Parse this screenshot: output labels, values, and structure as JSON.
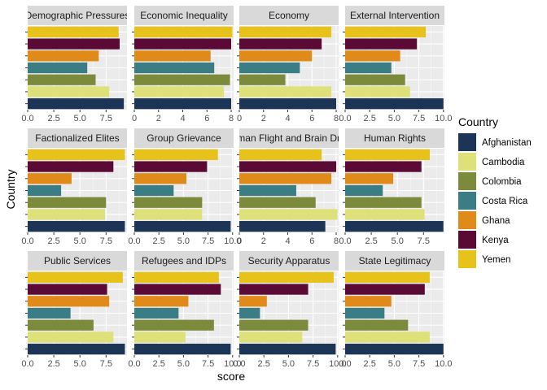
{
  "chart_data": {
    "type": "bar",
    "orientation": "horizontal",
    "faceted": true,
    "xlabel": "score",
    "ylabel": "Country",
    "legend": {
      "title": "Country",
      "placement": "right",
      "entries": [
        {
          "name": "Afghanistan",
          "color": "#1c3456"
        },
        {
          "name": "Cambodia",
          "color": "#dee07a"
        },
        {
          "name": "Colombia",
          "color": "#7b8a3b"
        },
        {
          "name": "Costa Rica",
          "color": "#3b7d85"
        },
        {
          "name": "Ghana",
          "color": "#e08a1a"
        },
        {
          "name": "Kenya",
          "color": "#5b0a36"
        },
        {
          "name": "Yemen",
          "color": "#e6c21a"
        }
      ]
    },
    "category_order_bottom_to_top": [
      "Afghanistan",
      "Cambodia",
      "Colombia",
      "Costa Rica",
      "Ghana",
      "Kenya",
      "Yemen"
    ],
    "panels": [
      {
        "title": "Demographic Pressures",
        "xlim": [
          0,
          9.5
        ],
        "ticks": [
          0,
          2.5,
          5,
          7.5
        ],
        "tick_labels": [
          "0.0",
          "2.5",
          "5.0",
          "7.5"
        ],
        "values": [
          9.2,
          7.8,
          6.5,
          5.7,
          6.8,
          8.8,
          8.7
        ]
      },
      {
        "title": "Economic Inequality",
        "xlim": [
          0,
          8.2
        ],
        "ticks": [
          0,
          2,
          4,
          6,
          8
        ],
        "tick_labels": [
          "0",
          "2",
          "4",
          "6",
          "8"
        ],
        "values": [
          8.0,
          7.4,
          7.9,
          6.6,
          6.3,
          8.0,
          8.1
        ]
      },
      {
        "title": "Economy",
        "xlim": [
          0,
          8.2
        ],
        "ticks": [
          0,
          2,
          4,
          6,
          8
        ],
        "tick_labels": [
          "0",
          "2",
          "4",
          "6",
          "8"
        ],
        "values": [
          8.0,
          7.6,
          3.8,
          5.0,
          6.0,
          6.8,
          7.6
        ]
      },
      {
        "title": "External Intervention",
        "xlim": [
          0,
          10.1
        ],
        "ticks": [
          0,
          2.5,
          5,
          7.5,
          10
        ],
        "tick_labels": [
          "0.0",
          "2.5",
          "5.0",
          "7.5",
          "10.0"
        ],
        "values": [
          10.0,
          6.6,
          6.1,
          4.7,
          5.6,
          7.3,
          8.2
        ]
      },
      {
        "title": "Factionalized Elites",
        "xlim": [
          0,
          9.5
        ],
        "ticks": [
          0,
          2.5,
          5,
          7.5
        ],
        "tick_labels": [
          "0.0",
          "2.5",
          "5.0",
          "7.5"
        ],
        "values": [
          9.3,
          7.4,
          7.5,
          3.2,
          4.2,
          8.2,
          9.3
        ]
      },
      {
        "title": "Group Grievance",
        "xlim": [
          0,
          10.1
        ],
        "ticks": [
          0,
          2.5,
          5,
          7.5,
          10
        ],
        "tick_labels": [
          "0.0",
          "2.5",
          "5.0",
          "7.5",
          "10.0"
        ],
        "values": [
          9.8,
          6.9,
          6.9,
          4.0,
          5.3,
          7.4,
          8.5
        ]
      },
      {
        "title": "Human Flight and Brain Drain",
        "xlim": [
          0,
          8.2
        ],
        "ticks": [
          0,
          2,
          4,
          6,
          8
        ],
        "tick_labels": [
          "0",
          "2",
          "4",
          "6",
          "8"
        ],
        "values": [
          7.1,
          8.1,
          6.3,
          4.7,
          7.6,
          8.0,
          6.8
        ]
      },
      {
        "title": "Human Rights",
        "xlim": [
          0,
          9.5
        ],
        "ticks": [
          0,
          2.5,
          5,
          7.5
        ],
        "tick_labels": [
          "0.0",
          "2.5",
          "5.0",
          "7.5"
        ],
        "values": [
          9.4,
          7.6,
          7.3,
          3.6,
          4.6,
          7.3,
          8.1
        ]
      },
      {
        "title": "Public Services",
        "xlim": [
          0,
          9.5
        ],
        "ticks": [
          0,
          2.5,
          5,
          7.5
        ],
        "tick_labels": [
          "0.0",
          "2.5",
          "5.0",
          "7.5"
        ],
        "values": [
          9.3,
          8.2,
          6.3,
          4.1,
          7.8,
          7.6,
          9.1
        ]
      },
      {
        "title": "Refugees and IDPs",
        "xlim": [
          0,
          10.1
        ],
        "ticks": [
          0,
          2.5,
          5,
          7.5,
          10
        ],
        "tick_labels": [
          "0.0",
          "2.5",
          "5.0",
          "7.5",
          "10.0"
        ],
        "values": [
          9.8,
          5.2,
          8.1,
          4.5,
          5.5,
          8.8,
          8.6
        ]
      },
      {
        "title": "Security Apparatus",
        "xlim": [
          0,
          10.1
        ],
        "ticks": [
          0,
          2.5,
          5,
          7.5,
          10
        ],
        "tick_labels": [
          "0.0",
          "2.5",
          "5.0",
          "7.5",
          "10.0"
        ],
        "values": [
          9.8,
          6.4,
          7.0,
          2.1,
          2.8,
          7.0,
          9.6
        ]
      },
      {
        "title": "State Legitimacy",
        "xlim": [
          0,
          10.1
        ],
        "ticks": [
          0,
          2.5,
          5,
          7.5,
          10
        ],
        "tick_labels": [
          "0.0",
          "2.5",
          "5.0",
          "7.5",
          "10.0"
        ],
        "values": [
          10.0,
          8.6,
          6.4,
          4.0,
          4.7,
          8.1,
          8.6
        ]
      }
    ]
  }
}
